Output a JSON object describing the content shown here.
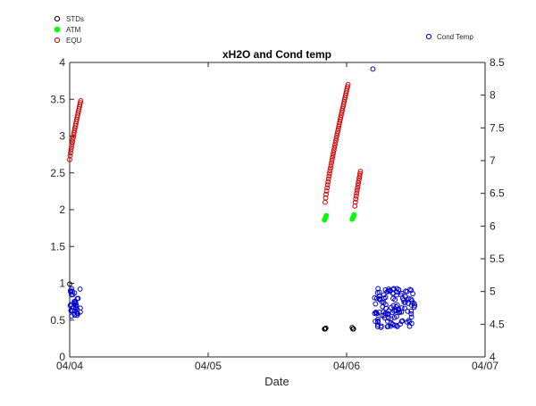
{
  "chart_data": {
    "type": "scatter",
    "title": "xH2O and Cond temp",
    "xlabel": "Date",
    "ylabel": "",
    "ylabel_right": "",
    "x_ticks": [
      "04/04",
      "04/05",
      "04/06",
      "04/07"
    ],
    "xlim": [
      0,
      3
    ],
    "ylim": [
      0,
      4
    ],
    "y_ticks": [
      "0",
      "0.5",
      "1",
      "1.5",
      "2",
      "2.5",
      "3",
      "3.5",
      "4"
    ],
    "ylim_right": [
      4,
      8.5
    ],
    "y_ticks_right": [
      "4",
      "4.5",
      "5",
      "5.5",
      "6",
      "6.5",
      "7",
      "7.5",
      "8",
      "8.5"
    ],
    "grid": false,
    "legend_left": {
      "placement": "top-left outside",
      "entries": [
        {
          "name": "STDs",
          "color": "#000000",
          "filled": false
        },
        {
          "name": "ATM",
          "color": "#00ff00",
          "filled": true
        },
        {
          "name": "EQU",
          "color": "#cc0000",
          "filled": false
        }
      ]
    },
    "legend_right": {
      "placement": "top-right outside",
      "entries": [
        {
          "name": "Cond Temp",
          "color": "#0000cc",
          "filled": false
        }
      ]
    },
    "series": [
      {
        "name": "STDs",
        "axis": "left",
        "color": "#000000",
        "marker": "open-circle",
        "points": [
          {
            "x": 0.0,
            "y": 0.99
          },
          {
            "x": 1.84,
            "y": 0.38
          },
          {
            "x": 1.845,
            "y": 0.38
          },
          {
            "x": 1.85,
            "y": 0.39
          },
          {
            "x": 2.04,
            "y": 0.4
          },
          {
            "x": 2.045,
            "y": 0.38
          },
          {
            "x": 2.05,
            "y": 0.38
          }
        ]
      },
      {
        "name": "ATM",
        "axis": "left",
        "color": "#00ff00",
        "marker": "filled-circle",
        "points": [
          {
            "x": 1.84,
            "y": 1.86
          },
          {
            "x": 1.845,
            "y": 1.88
          },
          {
            "x": 1.85,
            "y": 1.9
          },
          {
            "x": 1.853,
            "y": 1.92
          },
          {
            "x": 2.04,
            "y": 1.87
          },
          {
            "x": 2.045,
            "y": 1.89
          },
          {
            "x": 2.05,
            "y": 1.91
          },
          {
            "x": 2.053,
            "y": 1.93
          }
        ]
      },
      {
        "name": "EQU",
        "axis": "left",
        "color": "#cc0000",
        "marker": "open-circle",
        "segments": [
          {
            "x_start": 0.0,
            "x_end": 0.08,
            "y_start": 2.68,
            "y_end": 3.48,
            "count": 26
          },
          {
            "x_start": 1.845,
            "x_end": 2.01,
            "y_start": 2.1,
            "y_end": 3.7,
            "count": 48
          },
          {
            "x_start": 2.06,
            "x_end": 2.1,
            "y_start": 2.05,
            "y_end": 2.52,
            "count": 14
          }
        ]
      },
      {
        "name": "Cond Temp",
        "axis": "right",
        "color": "#0000cc",
        "marker": "open-circle",
        "clusters": [
          {
            "x_start": 0.0,
            "x_end": 0.08,
            "y_min": 4.6,
            "y_max": 5.05,
            "count": 36
          },
          {
            "x_start": 2.2,
            "x_end": 2.5,
            "y_min": 4.45,
            "y_max": 5.05,
            "count": 120
          }
        ],
        "points": [
          {
            "x": 2.19,
            "y": 8.4
          }
        ]
      }
    ]
  }
}
